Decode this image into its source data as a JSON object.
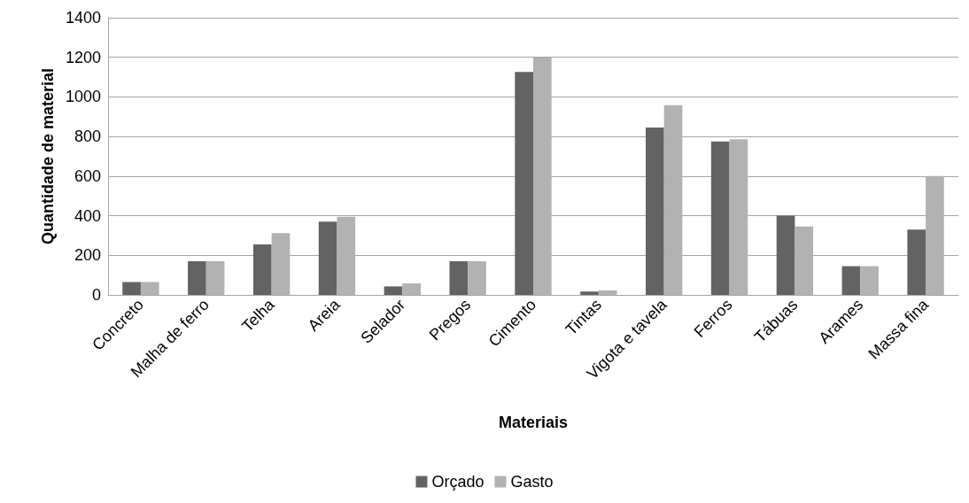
{
  "chart_data": {
    "type": "bar",
    "xlabel": "Materiais",
    "ylabel": "Quantidade de material",
    "categories": [
      "Concreto",
      "Malha de ferro",
      "Telha",
      "Areia",
      "Selador",
      "Pregos",
      "Cimento",
      "Tintas",
      "Vigota e tavela",
      "Ferros",
      "Tábuas",
      "Arames",
      "Massa fina"
    ],
    "series": [
      {
        "name": "Orçado",
        "color": "#636363",
        "values": [
          65,
          170,
          255,
          370,
          43,
          170,
          1126,
          17,
          845,
          775,
          400,
          145,
          330
        ]
      },
      {
        "name": "Gasto",
        "color": "#b2b2b2",
        "values": [
          65,
          170,
          312,
          395,
          58,
          170,
          1200,
          23,
          958,
          786,
          345,
          145,
          600
        ]
      }
    ],
    "ylim": [
      0,
      1400
    ],
    "yticks": [
      0,
      200,
      400,
      600,
      800,
      1000,
      1200,
      1400
    ],
    "grid": "y",
    "legend": "bottom"
  }
}
